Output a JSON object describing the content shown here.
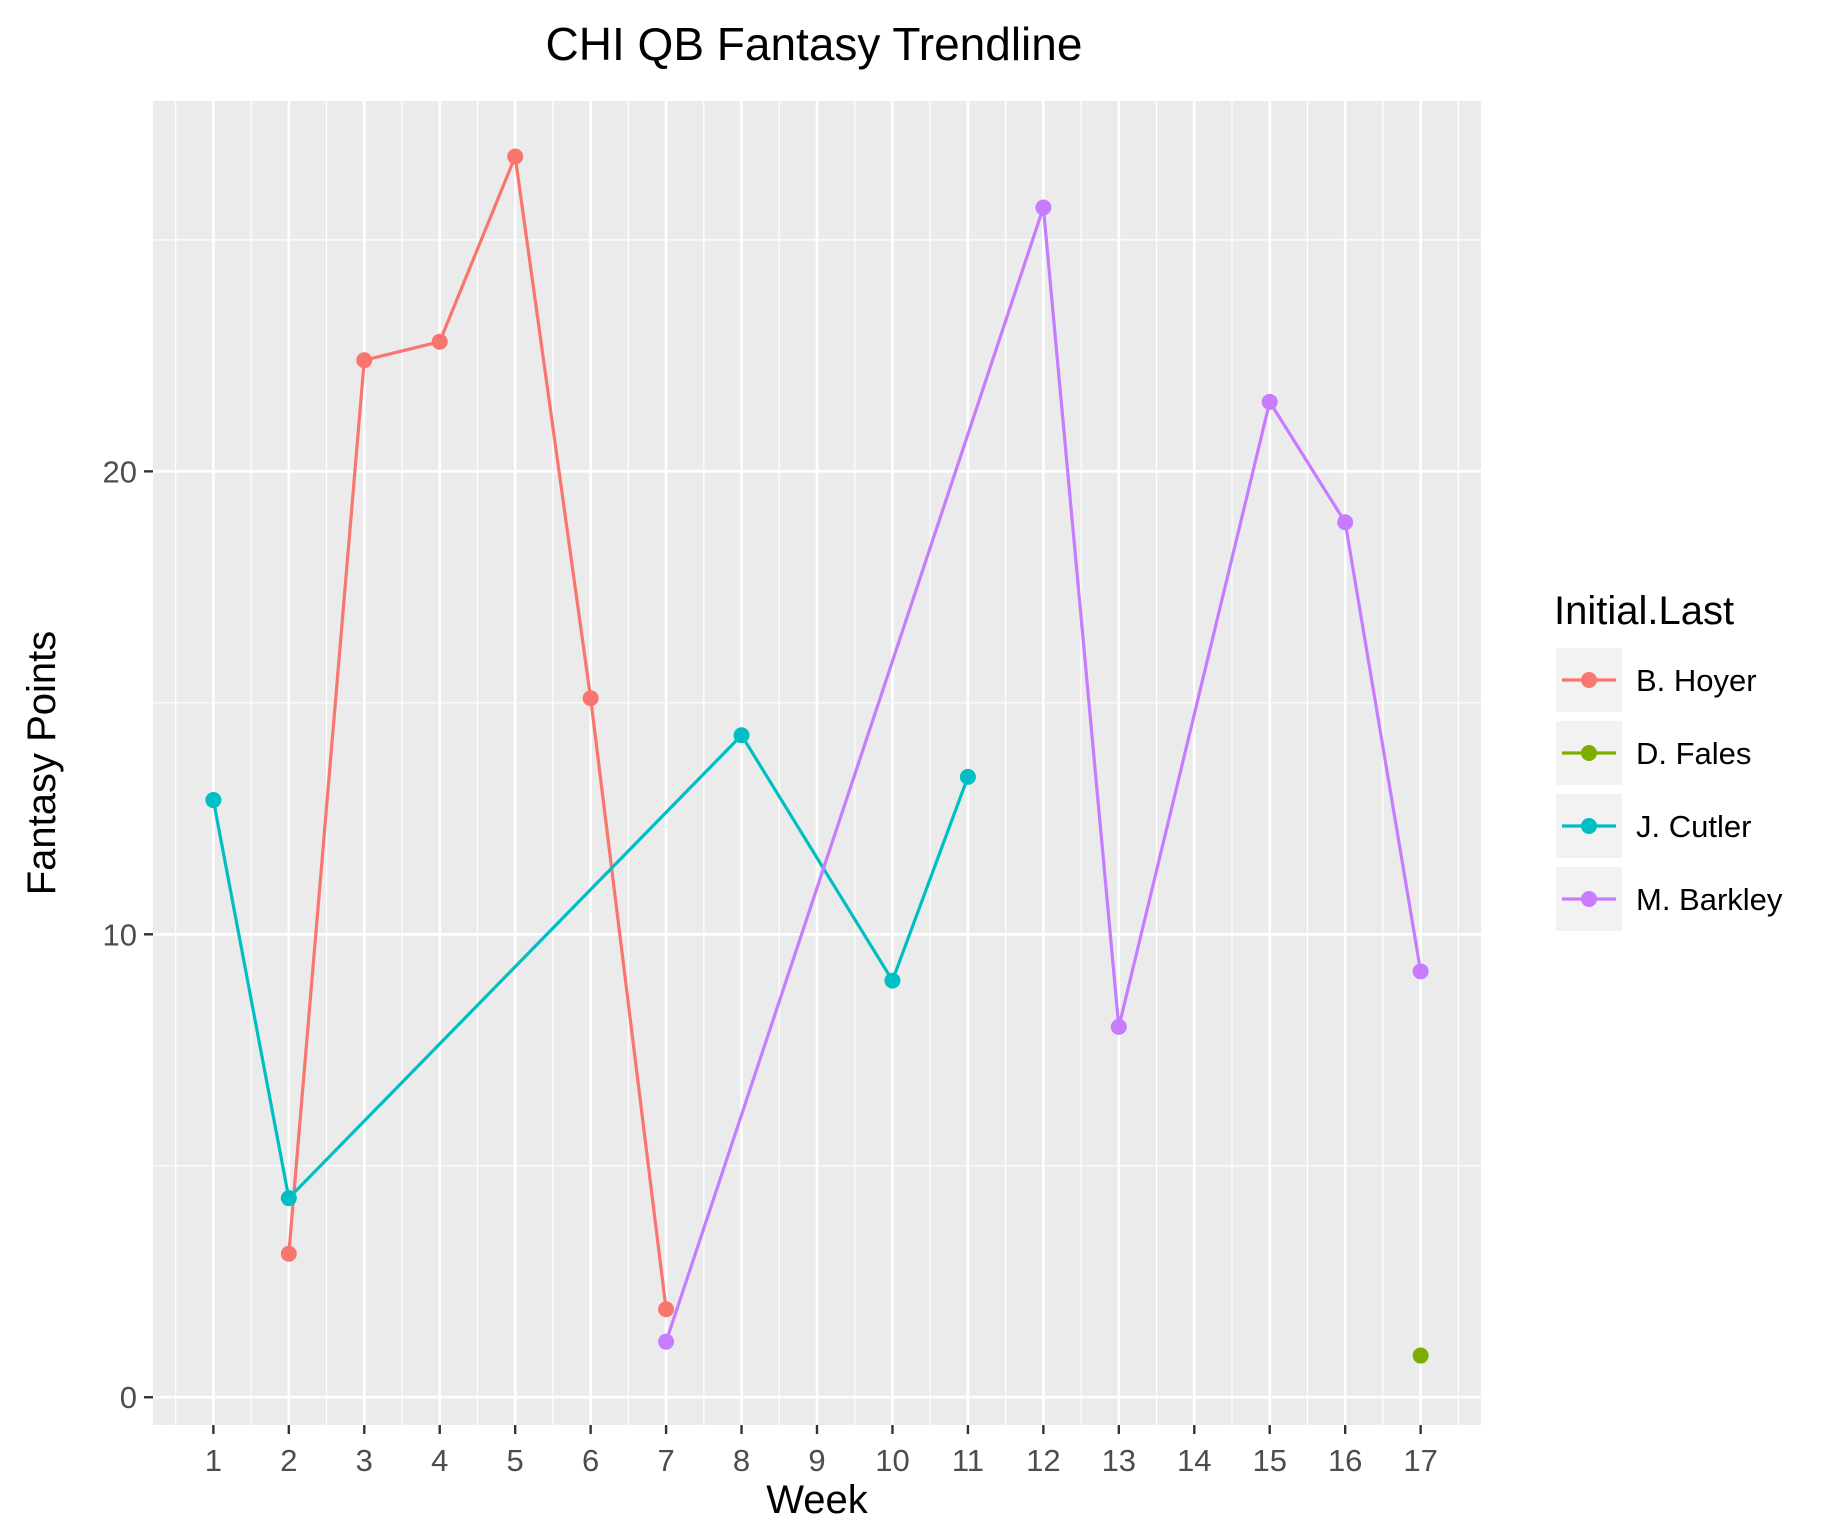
{
  "chart_data": {
    "type": "line",
    "title": "CHI QB Fantasy Trendline",
    "xlabel": "Week",
    "ylabel": "Fantasy Points",
    "x_ticks": [
      1,
      2,
      3,
      4,
      5,
      6,
      7,
      8,
      9,
      10,
      11,
      12,
      13,
      14,
      15,
      16,
      17
    ],
    "x_tick_labels": [
      "1",
      "2",
      "3",
      "4",
      "5",
      "6",
      "7",
      "8",
      "9",
      "10",
      "11",
      "12",
      "13",
      "14",
      "15",
      "16",
      "17"
    ],
    "y_ticks": [
      0,
      10,
      20
    ],
    "y_tick_labels": [
      "0",
      "10",
      "20"
    ],
    "xlim": [
      0.2,
      17.8
    ],
    "ylim": [
      -0.6,
      28.0
    ],
    "grid": true,
    "legend": {
      "title": "Initial.Last",
      "placement": "right"
    },
    "series": [
      {
        "name": "B. Hoyer",
        "color": "#F8766D",
        "points": [
          [
            2,
            3.1
          ],
          [
            3,
            22.4
          ],
          [
            4,
            22.8
          ],
          [
            5,
            26.8
          ],
          [
            6,
            15.1
          ],
          [
            7,
            1.9
          ]
        ]
      },
      {
        "name": "D. Fales",
        "color": "#7CAE00",
        "points": [
          [
            17,
            0.9
          ]
        ]
      },
      {
        "name": "J. Cutler",
        "color": "#00BFC4",
        "points": [
          [
            1,
            12.9
          ],
          [
            2,
            4.3
          ],
          [
            8,
            14.3
          ],
          [
            10,
            9.0
          ],
          [
            11,
            13.4
          ]
        ]
      },
      {
        "name": "M. Barkley",
        "color": "#C77CFF",
        "points": [
          [
            7,
            1.2
          ],
          [
            12,
            25.7
          ],
          [
            13,
            8.0
          ],
          [
            15,
            21.5
          ],
          [
            16,
            18.9
          ],
          [
            17,
            9.2
          ]
        ]
      }
    ]
  }
}
